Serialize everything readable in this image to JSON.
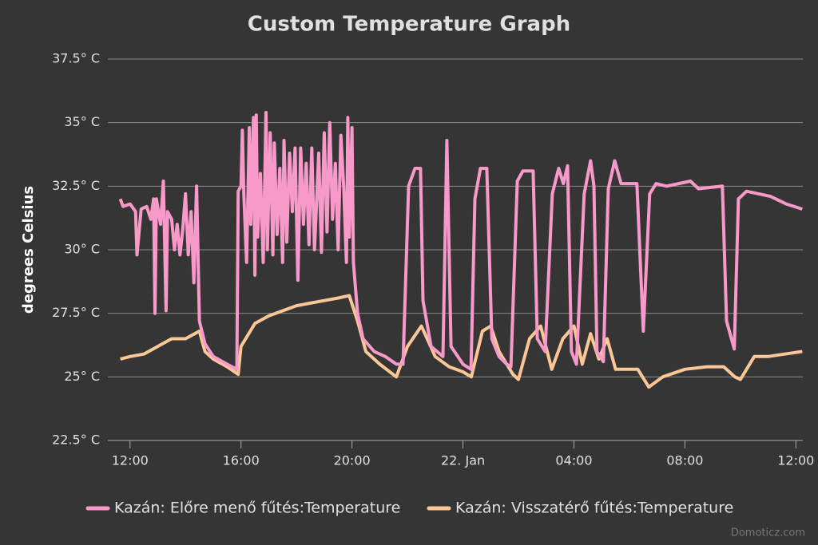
{
  "chart_data": {
    "type": "line",
    "title": "Custom Temperature Graph",
    "y_label": "degrees Celsius",
    "credit": "Domoticz.com",
    "xlim": [
      11.2,
      36.25
    ],
    "xticks": [
      {
        "value": 12,
        "label": "12:00"
      },
      {
        "value": 16,
        "label": "16:00"
      },
      {
        "value": 20,
        "label": "20:00"
      },
      {
        "value": 24,
        "label": "22. Jan"
      },
      {
        "value": 28,
        "label": "04:00"
      },
      {
        "value": 32,
        "label": "08:00"
      },
      {
        "value": 36,
        "label": "12:00"
      }
    ],
    "ylim": [
      22.5,
      37.5
    ],
    "yticks": [
      {
        "value": 22.5,
        "label": "22.5° C"
      },
      {
        "value": 25,
        "label": "25° C"
      },
      {
        "value": 27.5,
        "label": "27.5° C"
      },
      {
        "value": 30,
        "label": "30° C"
      },
      {
        "value": 32.5,
        "label": "32.5° C"
      },
      {
        "value": 35,
        "label": "35° C"
      },
      {
        "value": 37.5,
        "label": "37.5° C"
      }
    ],
    "grid": true,
    "legend": "bottom",
    "series": [
      {
        "name": "Kazán: Előre menő fűtés:Temperature",
        "color": "#f79ac9",
        "x": [
          11.65,
          11.75,
          12.0,
          12.2,
          12.25,
          12.4,
          12.6,
          12.75,
          12.85,
          12.9,
          12.95,
          13.1,
          13.2,
          13.3,
          13.35,
          13.5,
          13.6,
          13.7,
          13.8,
          13.9,
          14.0,
          14.1,
          14.2,
          14.3,
          14.4,
          14.5,
          14.7,
          15.0,
          15.5,
          15.85,
          15.9,
          16.0,
          16.05,
          16.1,
          16.2,
          16.3,
          16.35,
          16.45,
          16.5,
          16.55,
          16.6,
          16.7,
          16.8,
          16.9,
          16.95,
          17.05,
          17.15,
          17.2,
          17.3,
          17.4,
          17.5,
          17.55,
          17.65,
          17.75,
          17.85,
          17.95,
          18.05,
          18.15,
          18.25,
          18.35,
          18.45,
          18.55,
          18.65,
          18.8,
          18.9,
          19.0,
          19.1,
          19.2,
          19.3,
          19.4,
          19.5,
          19.6,
          19.7,
          19.8,
          19.85,
          19.9,
          20.0,
          20.05,
          20.2,
          20.4,
          20.8,
          21.2,
          21.6,
          21.84,
          22.04,
          22.27,
          22.47,
          22.56,
          22.85,
          23.28,
          23.42,
          23.57,
          24.0,
          24.29,
          24.43,
          24.63,
          24.86,
          25.04,
          25.3,
          25.58,
          25.73,
          25.96,
          26.16,
          26.53,
          26.68,
          26.96,
          27.22,
          27.45,
          27.62,
          27.77,
          27.91,
          28.09,
          28.37,
          28.6,
          28.72,
          28.83,
          29.06,
          29.24,
          29.47,
          29.7,
          30.27,
          30.5,
          30.73,
          30.96,
          31.34,
          32.2,
          32.49,
          33.35,
          33.5,
          33.78,
          33.93,
          34.22,
          35.08,
          35.65,
          36.23
        ],
        "values": [
          32,
          31.7,
          31.8,
          31.5,
          29.8,
          31.6,
          31.7,
          31.2,
          32,
          27.5,
          32,
          31,
          32.7,
          27.6,
          31.5,
          31.2,
          30,
          31,
          29.8,
          30.8,
          32.2,
          29.8,
          31.5,
          28.7,
          32.5,
          27.2,
          26.3,
          25.8,
          25.5,
          25.3,
          32.3,
          32.5,
          34.7,
          32.2,
          29.5,
          34.8,
          31,
          35.2,
          29,
          35.3,
          30.5,
          33,
          29.5,
          35.4,
          30,
          34.6,
          29.8,
          34.2,
          30.6,
          33.2,
          29.5,
          34.3,
          30.3,
          33.8,
          31.5,
          34,
          28.8,
          34,
          31,
          33.4,
          30.2,
          34,
          30,
          33.8,
          29.9,
          34.6,
          30.7,
          35,
          31.2,
          33.4,
          30,
          34.5,
          32.5,
          29.5,
          35.2,
          30.5,
          34.8,
          29.5,
          27.5,
          26.5,
          26,
          25.8,
          25.5,
          25.5,
          32.5,
          33.2,
          33.2,
          28,
          26.2,
          25.8,
          34.3,
          26.2,
          25.5,
          25.3,
          32,
          33.2,
          33.2,
          26.5,
          25.8,
          25.5,
          25.4,
          32.7,
          33.1,
          33.1,
          26.5,
          26,
          32.2,
          33.2,
          32.6,
          33.3,
          26,
          25.5,
          32.2,
          33.5,
          32.5,
          26,
          25.6,
          32.4,
          33.5,
          32.6,
          32.6,
          26.8,
          32.2,
          32.6,
          32.5,
          32.7,
          32.4,
          32.5,
          27.2,
          26.1,
          32,
          32.3,
          32.1,
          31.8,
          31.6
        ]
      },
      {
        "name": "Kazán: Visszatérő fűtés:Temperature",
        "color": "#fcc796",
        "x": [
          11.65,
          12.0,
          12.5,
          13.0,
          13.5,
          14.0,
          14.5,
          14.7,
          15.0,
          15.5,
          15.9,
          16.0,
          16.5,
          17.0,
          17.5,
          18.0,
          18.5,
          19.0,
          19.5,
          19.9,
          20.2,
          20.5,
          21.0,
          21.6,
          22.0,
          22.5,
          23.0,
          23.5,
          24.0,
          24.3,
          24.7,
          25.0,
          25.3,
          25.8,
          26.0,
          26.4,
          26.8,
          27.2,
          27.6,
          28.0,
          28.3,
          28.6,
          28.9,
          29.2,
          29.5,
          30.3,
          30.7,
          31.2,
          32.0,
          32.8,
          33.4,
          33.8,
          34.0,
          34.5,
          35.0,
          35.6,
          36.23
        ],
        "values": [
          25.7,
          25.8,
          25.9,
          26.2,
          26.5,
          26.5,
          26.8,
          26,
          25.7,
          25.4,
          25.1,
          26.2,
          27.1,
          27.4,
          27.6,
          27.8,
          27.9,
          28,
          28.1,
          28.2,
          27.2,
          26,
          25.5,
          25,
          26.2,
          27,
          25.8,
          25.4,
          25.2,
          25,
          26.8,
          27,
          26,
          25.1,
          24.9,
          26.5,
          27,
          25.3,
          26.5,
          27,
          25.5,
          26.7,
          25.7,
          26.5,
          25.3,
          25.3,
          24.6,
          25,
          25.3,
          25.4,
          25.4,
          25,
          24.9,
          25.8,
          25.8,
          25.9,
          26
        ]
      }
    ]
  }
}
